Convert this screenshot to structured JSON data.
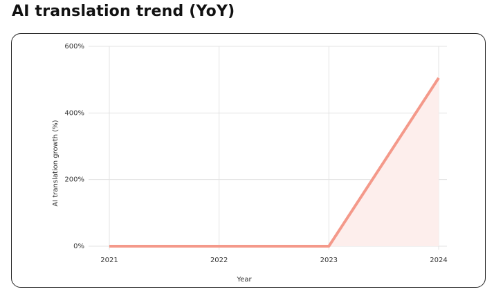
{
  "chart_data": {
    "type": "area",
    "title": "AI translation trend (YoY)",
    "categories": [
      "2021",
      "2022",
      "2023",
      "2024"
    ],
    "values": [
      0,
      0,
      0,
      505
    ],
    "color": "#f4998a",
    "fill": "#fdeeec",
    "ylim": [
      0,
      600
    ],
    "yticks": [
      {
        "value": 0,
        "label": "0%"
      },
      {
        "value": 200,
        "label": "200%"
      },
      {
        "value": 400,
        "label": "400%"
      },
      {
        "value": 600,
        "label": "600%"
      }
    ],
    "xlabel": "Year",
    "ylabel": "AI translation growth (%)",
    "grid": true
  }
}
